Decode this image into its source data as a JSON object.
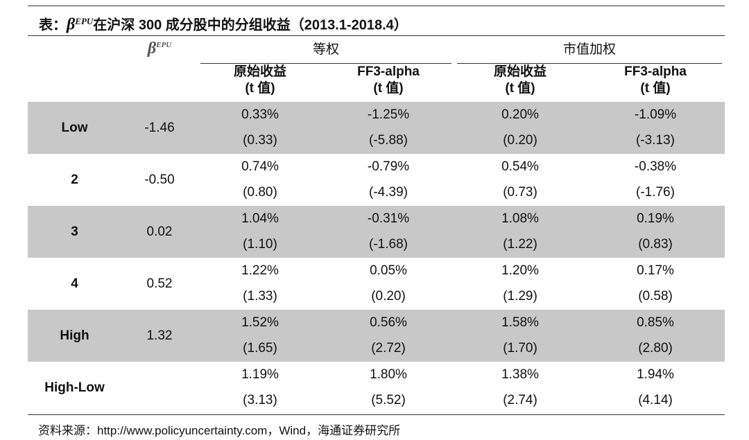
{
  "title": {
    "prefix": "表：",
    "symbol": "β",
    "superscript": "EPU",
    "suffix": "在沪深 300 成分股中的分组收益（2013.1-2018.4）"
  },
  "table": {
    "beta_header": {
      "symbol": "β",
      "superscript": "EPU"
    },
    "groups": [
      "等权",
      "市值加权"
    ],
    "columns": [
      {
        "name": "原始收益",
        "sub": "(t 值)"
      },
      {
        "name": "FF3-alpha",
        "sub": "(t 值)"
      },
      {
        "name": "原始收益",
        "sub": "(t 值)"
      },
      {
        "name": "FF3-alpha",
        "sub": "(t 值)"
      }
    ],
    "rows": [
      {
        "label": "Low",
        "beta": "-1.46",
        "cells": [
          [
            "0.33%",
            "(0.33)"
          ],
          [
            "-1.25%",
            "(-5.88)"
          ],
          [
            "0.20%",
            "(0.20)"
          ],
          [
            "-1.09%",
            "(-3.13)"
          ]
        ]
      },
      {
        "label": "2",
        "beta": "-0.50",
        "cells": [
          [
            "0.74%",
            "(0.80)"
          ],
          [
            "-0.79%",
            "(-4.39)"
          ],
          [
            "0.54%",
            "(0.73)"
          ],
          [
            "-0.38%",
            "(-1.76)"
          ]
        ]
      },
      {
        "label": "3",
        "beta": "0.02",
        "cells": [
          [
            "1.04%",
            "(1.10)"
          ],
          [
            "-0.31%",
            "(-1.68)"
          ],
          [
            "1.08%",
            "(1.22)"
          ],
          [
            "0.19%",
            "(0.83)"
          ]
        ]
      },
      {
        "label": "4",
        "beta": "0.52",
        "cells": [
          [
            "1.22%",
            "(1.33)"
          ],
          [
            "0.05%",
            "(0.20)"
          ],
          [
            "1.20%",
            "(1.29)"
          ],
          [
            "0.17%",
            "(0.58)"
          ]
        ]
      },
      {
        "label": "High",
        "beta": "1.32",
        "cells": [
          [
            "1.52%",
            "(1.65)"
          ],
          [
            "0.56%",
            "(2.72)"
          ],
          [
            "1.58%",
            "(1.70)"
          ],
          [
            "0.85%",
            "(2.80)"
          ]
        ]
      },
      {
        "label": "High-Low",
        "beta": "",
        "cells": [
          [
            "1.19%",
            "(3.13)"
          ],
          [
            "1.80%",
            "(5.52)"
          ],
          [
            "1.38%",
            "(2.74)"
          ],
          [
            "1.94%",
            "(4.14)"
          ]
        ]
      }
    ]
  },
  "source": "资料来源：http://www.policyuncertainty.com，Wind，海通证券研究所"
}
